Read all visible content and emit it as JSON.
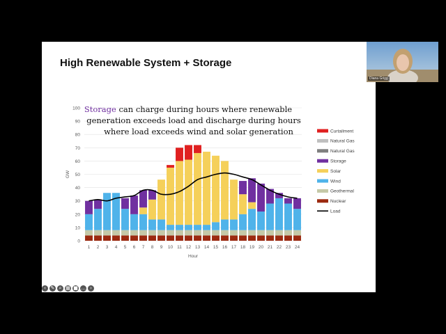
{
  "slide": {
    "title": "High Renewable System + Storage",
    "annotation": {
      "highlight": "Storage",
      "line1_rest": " can charge during hours where renewable",
      "line2": "generation exceeds load and discharge during hours",
      "line3": "where load exceeds wind and solar generation"
    }
  },
  "video": {
    "name": "Diana Grigg"
  },
  "toolbar": {
    "icons": [
      "prev-icon",
      "pen-icon",
      "zoom-icon",
      "grid-icon",
      "camera-icon",
      "more-icon",
      "next-icon"
    ]
  },
  "colors": {
    "curtailment": "#e02020",
    "natural_gas_1": "#bfbfbf",
    "natural_gas_2": "#7f7f7f",
    "storage": "#7030a0",
    "solar": "#f5d05a",
    "wind": "#4fb3ea",
    "geothermal": "#c5c9a8",
    "nuclear": "#9c2a10",
    "load": "#000000"
  },
  "chart_data": {
    "type": "bar",
    "stacked": true,
    "ylabel": "GW",
    "xlabel": "Hour",
    "ylim": [
      0,
      100
    ],
    "yticks": [
      0,
      10,
      20,
      30,
      40,
      50,
      60,
      70,
      80,
      90,
      100
    ],
    "categories": [
      "1",
      "2",
      "3",
      "4",
      "5",
      "6",
      "7",
      "8",
      "9",
      "10",
      "11",
      "12",
      "13",
      "14",
      "15",
      "16",
      "17",
      "18",
      "19",
      "20",
      "21",
      "22",
      "23",
      "24"
    ],
    "legend_position": "right",
    "series": [
      {
        "name": "Nuclear",
        "color": "#9c2a10",
        "values": [
          4,
          4,
          4,
          4,
          4,
          4,
          4,
          4,
          4,
          4,
          4,
          4,
          4,
          4,
          4,
          4,
          4,
          4,
          4,
          4,
          4,
          4,
          4,
          4
        ]
      },
      {
        "name": "Geothermal",
        "color": "#c5c9a8",
        "values": [
          4,
          4,
          4,
          4,
          4,
          4,
          4,
          4,
          4,
          4,
          4,
          4,
          4,
          4,
          4,
          4,
          4,
          4,
          4,
          4,
          4,
          4,
          4,
          4
        ]
      },
      {
        "name": "Wind",
        "color": "#4fb3ea",
        "values": [
          12,
          16,
          28,
          28,
          16,
          12,
          12,
          8,
          8,
          4,
          4,
          4,
          4,
          4,
          6,
          8,
          8,
          12,
          16,
          14,
          20,
          24,
          20,
          16
        ]
      },
      {
        "name": "Solar",
        "color": "#f5d05a",
        "values": [
          0,
          0,
          0,
          0,
          0,
          0,
          5,
          15,
          30,
          43,
          48,
          49,
          54,
          55,
          50,
          44,
          30,
          15,
          5,
          0,
          0,
          0,
          0,
          0
        ]
      },
      {
        "name": "Storage",
        "color": "#7030a0",
        "values": [
          10,
          7,
          0,
          0,
          8,
          14,
          13,
          7,
          0,
          0,
          0,
          0,
          0,
          0,
          0,
          0,
          0,
          10,
          18,
          21,
          11,
          4,
          4,
          8
        ]
      },
      {
        "name": "Natural Gas",
        "color": "#7f7f7f",
        "values": [
          0,
          0,
          0,
          0,
          0,
          0,
          0,
          0,
          0,
          0,
          0,
          0,
          0,
          0,
          0,
          0,
          0,
          0,
          0,
          0,
          0,
          0,
          0,
          0
        ]
      },
      {
        "name": "Natural Gas",
        "color": "#bfbfbf",
        "values": [
          0,
          0,
          0,
          0,
          0,
          0,
          0,
          0,
          0,
          0,
          0,
          0,
          0,
          0,
          0,
          0,
          0,
          0,
          0,
          0,
          0,
          0,
          0,
          0
        ]
      },
      {
        "name": "Curtailment",
        "color": "#e02020",
        "values": [
          0,
          0,
          0,
          0,
          0,
          0,
          0,
          0,
          0,
          2,
          10,
          11,
          6,
          0,
          0,
          0,
          0,
          0,
          0,
          0,
          0,
          0,
          0,
          0
        ]
      }
    ],
    "load": {
      "name": "Load",
      "values": [
        30,
        31,
        30,
        32,
        33,
        34,
        38,
        38,
        35,
        35,
        37,
        41,
        46,
        48,
        50,
        51,
        50,
        48,
        46,
        42,
        38,
        35,
        33,
        32
      ]
    },
    "legend": [
      "Curtailment",
      "Natural Gas",
      "Natural Gas",
      "Storage",
      "Solar",
      "Wind",
      "Geothermal",
      "Nuclear",
      "Load"
    ]
  }
}
